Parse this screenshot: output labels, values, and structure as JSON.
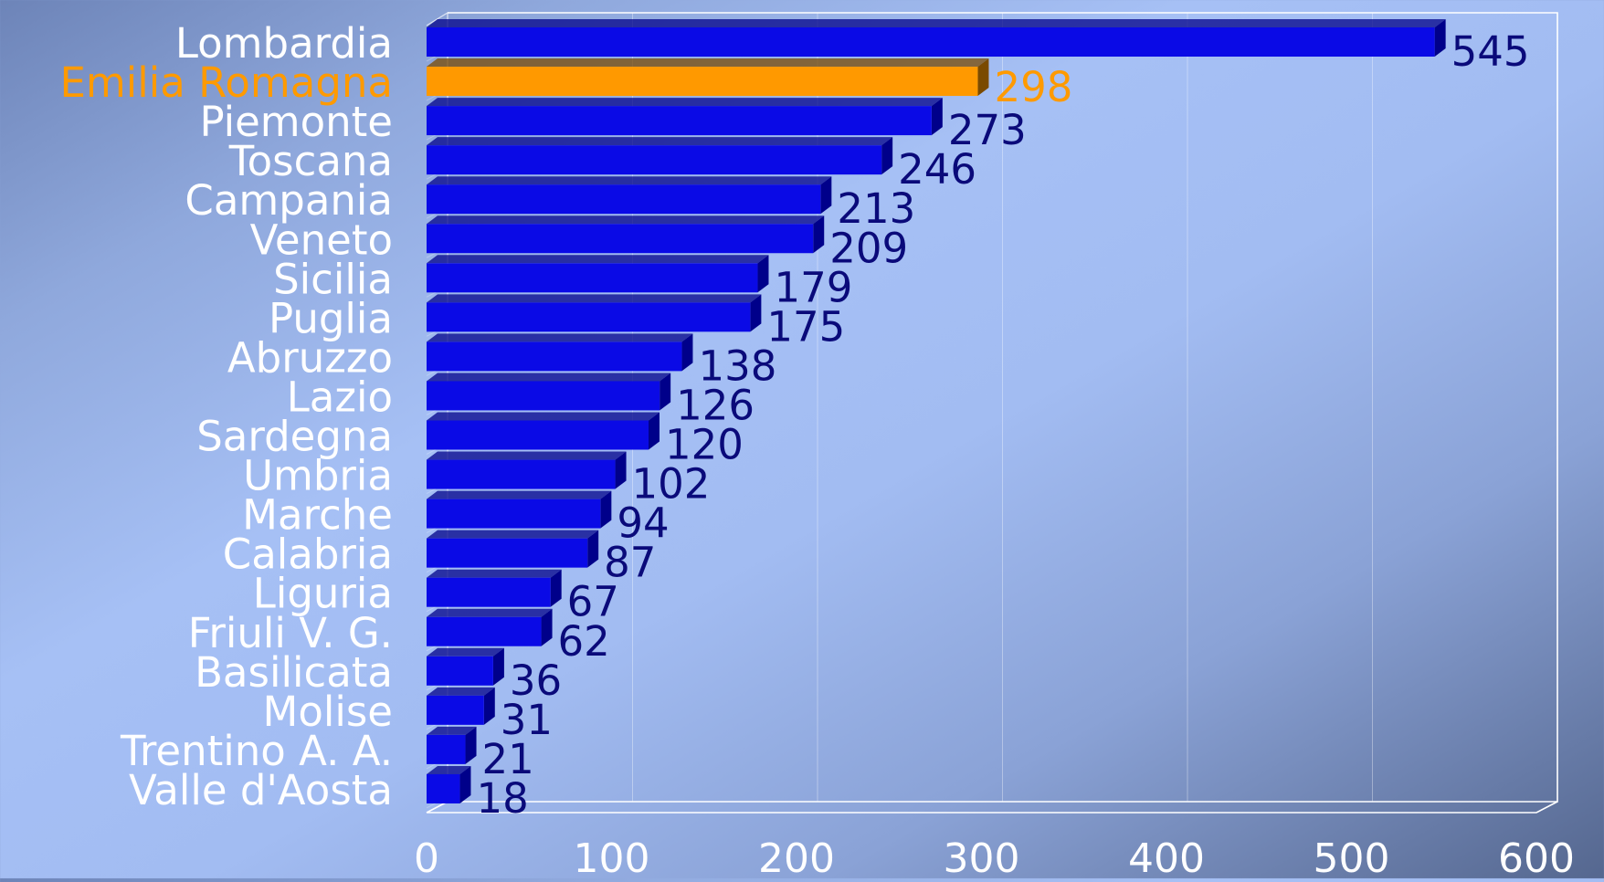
{
  "chart_data": {
    "type": "bar",
    "orientation": "horizontal",
    "categories": [
      "Lombardia",
      "Emilia Romagna",
      "Piemonte",
      "Toscana",
      "Campania",
      "Veneto",
      "Sicilia",
      "Puglia",
      "Abruzzo",
      "Lazio",
      "Sardegna",
      "Umbria",
      "Marche",
      "Calabria",
      "Liguria",
      "Friuli V. G.",
      "Basilicata",
      "Molise",
      "Trentino A. A.",
      "Valle d'Aosta"
    ],
    "values": [
      545,
      298,
      273,
      246,
      213,
      209,
      179,
      175,
      138,
      126,
      120,
      102,
      94,
      87,
      67,
      62,
      36,
      31,
      21,
      18
    ],
    "highlight": "Emilia Romagna",
    "xlim": [
      0,
      600
    ],
    "xticks": [
      0,
      100,
      200,
      300,
      400,
      500,
      600
    ],
    "grid": true,
    "legend": "none",
    "colors": {
      "bar": "#0a0ae6",
      "bar_side": "#00008a",
      "highlight_bar": "#ff9900",
      "highlight_side": "#7a4a00",
      "category_label": "#ffffff",
      "highlight_label": "#ff9a00",
      "value_label": "#0a0a7a",
      "axis": "#ffffff"
    }
  }
}
